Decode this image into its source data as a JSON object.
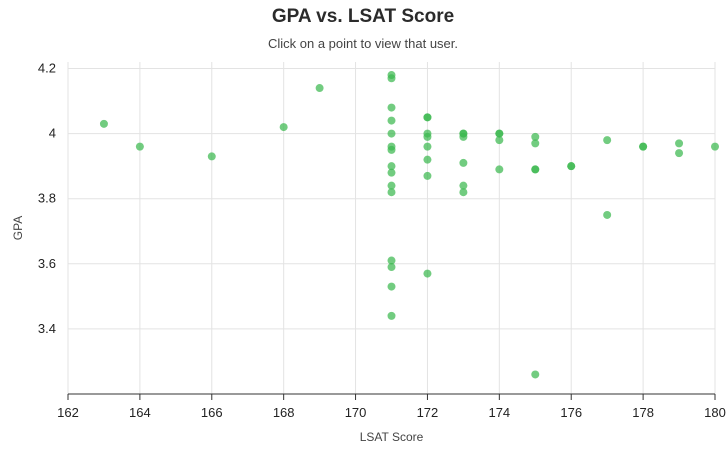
{
  "title": "GPA vs. LSAT Score",
  "subtitle": "Click on a point to view that user.",
  "chart_data": {
    "type": "scatter",
    "xlabel": "LSAT Score",
    "ylabel": "GPA",
    "xlim": [
      162,
      180
    ],
    "ylim": [
      3.2,
      4.22
    ],
    "xticks": [
      162,
      164,
      166,
      168,
      170,
      172,
      174,
      176,
      178,
      180
    ],
    "yticks": [
      3.4,
      3.6,
      3.8,
      4.0,
      4.2
    ],
    "ytick_labels": [
      "3.4",
      "3.6",
      "3.8",
      "4",
      "4.2"
    ],
    "grid": true,
    "point_color": "#3cb84f",
    "points": [
      [
        163,
        4.03
      ],
      [
        164,
        3.96
      ],
      [
        166,
        3.93
      ],
      [
        168,
        4.02
      ],
      [
        169,
        4.14
      ],
      [
        171,
        4.18
      ],
      [
        171,
        4.17
      ],
      [
        171,
        4.08
      ],
      [
        171,
        4.04
      ],
      [
        171,
        4.0
      ],
      [
        171,
        3.96
      ],
      [
        171,
        3.95
      ],
      [
        171,
        3.9
      ],
      [
        171,
        3.88
      ],
      [
        171,
        3.84
      ],
      [
        171,
        3.82
      ],
      [
        171,
        3.61
      ],
      [
        171,
        3.59
      ],
      [
        171,
        3.53
      ],
      [
        171,
        3.44
      ],
      [
        172,
        4.05
      ],
      [
        172,
        4.05
      ],
      [
        172,
        4.0
      ],
      [
        172,
        3.99
      ],
      [
        172,
        3.96
      ],
      [
        172,
        3.92
      ],
      [
        172,
        3.87
      ],
      [
        172,
        3.57
      ],
      [
        173,
        4.0
      ],
      [
        173,
        4.0
      ],
      [
        173,
        3.99
      ],
      [
        173,
        3.91
      ],
      [
        173,
        3.84
      ],
      [
        173,
        3.82
      ],
      [
        174,
        4.0
      ],
      [
        174,
        4.0
      ],
      [
        174,
        3.98
      ],
      [
        174,
        3.89
      ],
      [
        175,
        3.99
      ],
      [
        175,
        3.97
      ],
      [
        175,
        3.89
      ],
      [
        175,
        3.89
      ],
      [
        175,
        3.26
      ],
      [
        176,
        3.9
      ],
      [
        176,
        3.9
      ],
      [
        177,
        3.98
      ],
      [
        177,
        3.75
      ],
      [
        178,
        3.96
      ],
      [
        178,
        3.96
      ],
      [
        179,
        3.97
      ],
      [
        179,
        3.94
      ],
      [
        180,
        3.96
      ]
    ]
  }
}
